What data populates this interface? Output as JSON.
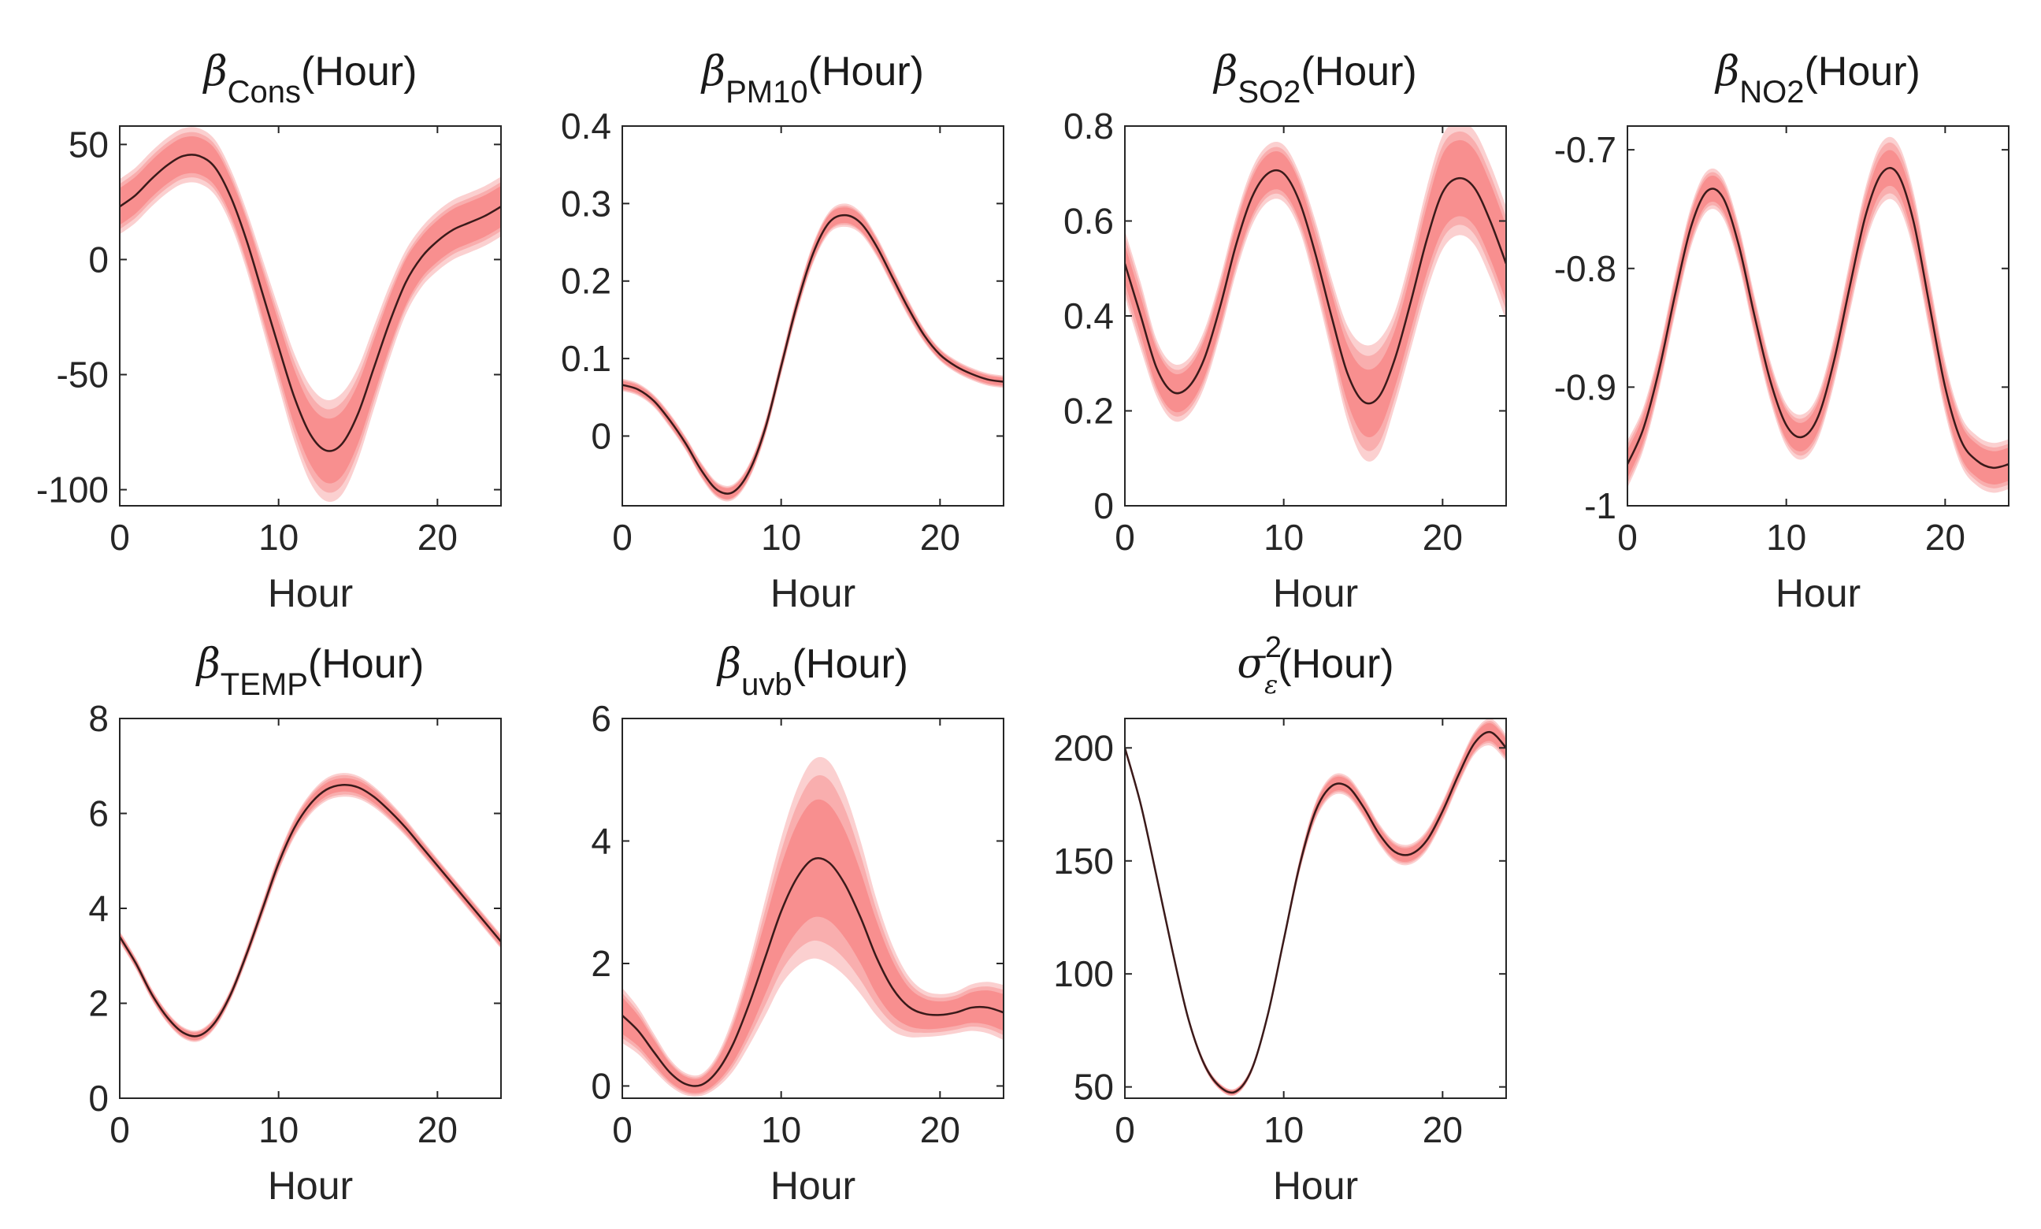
{
  "figure": {
    "description_layout": "3 top panels + 1 on row 1 (4 total), 3 on row 2"
  },
  "chart_data": [
    {
      "type": "line",
      "title": {
        "symbol": "β",
        "subscript": "Cons",
        "superscript": "",
        "suffix": "(Hour)"
      },
      "xlabel": "Hour",
      "xlim": [
        0,
        24
      ],
      "ylim": [
        -107,
        58
      ],
      "xticks": [
        0,
        10,
        20
      ],
      "xtick_labels": [
        "0",
        "10",
        "20"
      ],
      "yticks": [
        50,
        0,
        -50,
        -100
      ],
      "ytick_labels": [
        "50",
        "0",
        "-50",
        "-100"
      ],
      "x": [
        0,
        1,
        2,
        3,
        4,
        5,
        6,
        7,
        8,
        9,
        10,
        11,
        12,
        13,
        14,
        15,
        16,
        17,
        18,
        19,
        20,
        21,
        22,
        23,
        24
      ],
      "mean": [
        23,
        28,
        35,
        41,
        45,
        45,
        40,
        27,
        8,
        -15,
        -38,
        -60,
        -76,
        -83,
        -80,
        -67,
        -47,
        -27,
        -10,
        1,
        8,
        13,
        16,
        19,
        23
      ],
      "band_inner": [
        8,
        8,
        8,
        8,
        8,
        8,
        8,
        8,
        9,
        10,
        11,
        12,
        13,
        14,
        14,
        13,
        12,
        11,
        10,
        9,
        9,
        9,
        9,
        9,
        9
      ],
      "band_outer": [
        12,
        12,
        12,
        12,
        12,
        12,
        12,
        12,
        13,
        15,
        17,
        19,
        21,
        22,
        22,
        20,
        18,
        16,
        14,
        13,
        13,
        13,
        13,
        13,
        13
      ]
    },
    {
      "type": "line",
      "title": {
        "symbol": "β",
        "subscript": "PM10",
        "superscript": "",
        "suffix": "(Hour)"
      },
      "xlabel": "Hour",
      "xlim": [
        0,
        24
      ],
      "ylim": [
        -0.09,
        0.4
      ],
      "xticks": [
        0,
        10,
        20
      ],
      "xtick_labels": [
        "0",
        "10",
        "20"
      ],
      "yticks": [
        0.4,
        0.3,
        0.2,
        0.1,
        0
      ],
      "ytick_labels": [
        "0.4",
        "0.3",
        "0.2",
        "0.1",
        "0"
      ],
      "x": [
        0,
        1,
        2,
        3,
        4,
        5,
        6,
        7,
        8,
        9,
        10,
        11,
        12,
        13,
        14,
        15,
        16,
        17,
        18,
        19,
        20,
        21,
        22,
        23,
        24
      ],
      "mean": [
        0.066,
        0.06,
        0.045,
        0.02,
        -0.01,
        -0.045,
        -0.07,
        -0.072,
        -0.045,
        0.01,
        0.09,
        0.17,
        0.235,
        0.275,
        0.285,
        0.275,
        0.245,
        0.205,
        0.165,
        0.13,
        0.105,
        0.09,
        0.08,
        0.073,
        0.07
      ],
      "band_inner": [
        0.005,
        0.005,
        0.005,
        0.006,
        0.006,
        0.007,
        0.007,
        0.007,
        0.007,
        0.007,
        0.007,
        0.008,
        0.009,
        0.01,
        0.01,
        0.01,
        0.009,
        0.008,
        0.007,
        0.006,
        0.006,
        0.005,
        0.005,
        0.005,
        0.005
      ],
      "band_outer": [
        0.008,
        0.008,
        0.008,
        0.009,
        0.009,
        0.01,
        0.01,
        0.01,
        0.01,
        0.01,
        0.011,
        0.012,
        0.013,
        0.014,
        0.015,
        0.014,
        0.013,
        0.012,
        0.011,
        0.009,
        0.008,
        0.008,
        0.008,
        0.008,
        0.008
      ]
    },
    {
      "type": "line",
      "title": {
        "symbol": "β",
        "subscript": "SO2",
        "superscript": "",
        "suffix": "(Hour)"
      },
      "xlabel": "Hour",
      "xlim": [
        0,
        24
      ],
      "ylim": [
        0,
        0.8
      ],
      "xticks": [
        0,
        10,
        20
      ],
      "xtick_labels": [
        "0",
        "10",
        "20"
      ],
      "yticks": [
        0.8,
        0.6,
        0.4,
        0.2,
        0
      ],
      "ytick_labels": [
        "0.8",
        "0.6",
        "0.4",
        "0.2",
        "0"
      ],
      "x": [
        0,
        1,
        2,
        3,
        4,
        5,
        6,
        7,
        8,
        9,
        10,
        11,
        12,
        13,
        14,
        15,
        16,
        17,
        18,
        19,
        20,
        21,
        22,
        23,
        24
      ],
      "mean": [
        0.51,
        0.4,
        0.29,
        0.24,
        0.25,
        0.31,
        0.42,
        0.55,
        0.65,
        0.7,
        0.7,
        0.64,
        0.53,
        0.4,
        0.28,
        0.22,
        0.23,
        0.31,
        0.43,
        0.56,
        0.66,
        0.69,
        0.67,
        0.6,
        0.51
      ],
      "band_inner": [
        0.04,
        0.04,
        0.04,
        0.04,
        0.04,
        0.04,
        0.04,
        0.04,
        0.04,
        0.04,
        0.04,
        0.04,
        0.04,
        0.05,
        0.06,
        0.07,
        0.07,
        0.06,
        0.06,
        0.07,
        0.08,
        0.08,
        0.08,
        0.08,
        0.08
      ],
      "band_outer": [
        0.07,
        0.07,
        0.06,
        0.06,
        0.06,
        0.06,
        0.06,
        0.06,
        0.06,
        0.06,
        0.06,
        0.06,
        0.07,
        0.08,
        0.1,
        0.12,
        0.12,
        0.1,
        0.1,
        0.11,
        0.12,
        0.12,
        0.12,
        0.12,
        0.12
      ]
    },
    {
      "type": "line",
      "title": {
        "symbol": "β",
        "subscript": "NO2",
        "superscript": "",
        "suffix": "(Hour)"
      },
      "xlabel": "Hour",
      "xlim": [
        0,
        24
      ],
      "ylim": [
        -1.0,
        -0.68
      ],
      "xticks": [
        0,
        10,
        20
      ],
      "xtick_labels": [
        "0",
        "10",
        "20"
      ],
      "yticks": [
        -0.7,
        -0.8,
        -0.9,
        -1
      ],
      "ytick_labels": [
        "-0.7",
        "-0.8",
        "-0.9",
        "-1"
      ],
      "x": [
        0,
        1,
        2,
        3,
        4,
        5,
        6,
        7,
        8,
        9,
        10,
        11,
        12,
        13,
        14,
        15,
        16,
        17,
        18,
        19,
        20,
        21,
        22,
        23,
        24
      ],
      "mean": [
        -0.965,
        -0.935,
        -0.885,
        -0.822,
        -0.765,
        -0.735,
        -0.74,
        -0.78,
        -0.84,
        -0.895,
        -0.932,
        -0.942,
        -0.925,
        -0.878,
        -0.815,
        -0.755,
        -0.72,
        -0.72,
        -0.76,
        -0.83,
        -0.9,
        -0.945,
        -0.962,
        -0.968,
        -0.965
      ],
      "band_inner": [
        0.012,
        0.011,
        0.011,
        0.011,
        0.011,
        0.011,
        0.011,
        0.011,
        0.011,
        0.011,
        0.012,
        0.012,
        0.012,
        0.012,
        0.013,
        0.014,
        0.015,
        0.015,
        0.015,
        0.014,
        0.014,
        0.014,
        0.014,
        0.014,
        0.014
      ],
      "band_outer": [
        0.02,
        0.018,
        0.017,
        0.017,
        0.017,
        0.017,
        0.017,
        0.017,
        0.017,
        0.017,
        0.018,
        0.019,
        0.019,
        0.02,
        0.022,
        0.024,
        0.026,
        0.026,
        0.025,
        0.023,
        0.022,
        0.021,
        0.021,
        0.021,
        0.021
      ]
    },
    {
      "type": "line",
      "title": {
        "symbol": "β",
        "subscript": "TEMP",
        "superscript": "",
        "suffix": "(Hour)"
      },
      "xlabel": "Hour",
      "xlim": [
        0,
        24
      ],
      "ylim": [
        0,
        8
      ],
      "xticks": [
        0,
        10,
        20
      ],
      "xtick_labels": [
        "0",
        "10",
        "20"
      ],
      "yticks": [
        8,
        6,
        4,
        2,
        0
      ],
      "ytick_labels": [
        "8",
        "6",
        "4",
        "2",
        "0"
      ],
      "x": [
        0,
        1,
        2,
        3,
        4,
        5,
        6,
        7,
        8,
        9,
        10,
        11,
        12,
        13,
        14,
        15,
        16,
        17,
        18,
        19,
        20,
        21,
        22,
        23,
        24
      ],
      "mean": [
        3.4,
        2.85,
        2.2,
        1.7,
        1.38,
        1.32,
        1.6,
        2.2,
        3.05,
        4.0,
        4.95,
        5.7,
        6.2,
        6.5,
        6.6,
        6.55,
        6.35,
        6.05,
        5.7,
        5.3,
        4.9,
        4.5,
        4.1,
        3.7,
        3.3
      ],
      "band_inner": [
        0.08,
        0.08,
        0.08,
        0.08,
        0.08,
        0.08,
        0.08,
        0.08,
        0.09,
        0.1,
        0.11,
        0.12,
        0.13,
        0.14,
        0.14,
        0.14,
        0.13,
        0.12,
        0.11,
        0.1,
        0.1,
        0.1,
        0.1,
        0.1,
        0.1
      ],
      "band_outer": [
        0.12,
        0.12,
        0.12,
        0.12,
        0.12,
        0.12,
        0.12,
        0.12,
        0.14,
        0.16,
        0.18,
        0.2,
        0.22,
        0.24,
        0.25,
        0.24,
        0.22,
        0.2,
        0.18,
        0.16,
        0.15,
        0.15,
        0.15,
        0.15,
        0.15
      ]
    },
    {
      "type": "line",
      "title": {
        "symbol": "β",
        "subscript": "uvb",
        "superscript": "",
        "suffix": "(Hour)"
      },
      "xlabel": "Hour",
      "xlim": [
        0,
        24
      ],
      "ylim": [
        -0.2,
        6
      ],
      "xticks": [
        0,
        10,
        20
      ],
      "xtick_labels": [
        "0",
        "10",
        "20"
      ],
      "yticks": [
        6,
        4,
        2,
        0
      ],
      "ytick_labels": [
        "6",
        "4",
        "2",
        "0"
      ],
      "x": [
        0,
        1,
        2,
        3,
        4,
        5,
        6,
        7,
        8,
        9,
        10,
        11,
        12,
        13,
        14,
        15,
        16,
        17,
        18,
        19,
        20,
        21,
        22,
        23,
        24
      ],
      "mean": [
        1.15,
        0.9,
        0.55,
        0.22,
        0.03,
        0.02,
        0.25,
        0.7,
        1.35,
        2.1,
        2.85,
        3.4,
        3.7,
        3.65,
        3.3,
        2.75,
        2.1,
        1.6,
        1.3,
        1.18,
        1.16,
        1.2,
        1.28,
        1.28,
        1.2
      ],
      "band_inner": [
        0.3,
        0.25,
        0.2,
        0.15,
        0.12,
        0.12,
        0.18,
        0.3,
        0.45,
        0.6,
        0.75,
        0.88,
        0.95,
        0.95,
        0.88,
        0.75,
        0.6,
        0.45,
        0.32,
        0.25,
        0.22,
        0.22,
        0.25,
        0.28,
        0.3
      ],
      "band_outer": [
        0.45,
        0.38,
        0.3,
        0.22,
        0.18,
        0.18,
        0.27,
        0.45,
        0.68,
        0.95,
        1.2,
        1.45,
        1.62,
        1.65,
        1.5,
        1.25,
        0.95,
        0.7,
        0.5,
        0.38,
        0.34,
        0.34,
        0.38,
        0.42,
        0.45
      ]
    },
    {
      "type": "line",
      "title": {
        "symbol": "σ",
        "subscript": "ε",
        "superscript": "2",
        "suffix": "(Hour)"
      },
      "xlabel": "Hour",
      "xlim": [
        0,
        24
      ],
      "ylim": [
        45,
        213
      ],
      "xticks": [
        0,
        10,
        20
      ],
      "xtick_labels": [
        "0",
        "10",
        "20"
      ],
      "yticks": [
        200,
        150,
        100,
        50
      ],
      "ytick_labels": [
        "200",
        "150",
        "100",
        "50"
      ],
      "x": [
        0,
        1,
        2,
        3,
        4,
        5,
        6,
        7,
        8,
        9,
        10,
        11,
        12,
        13,
        14,
        15,
        16,
        17,
        18,
        19,
        20,
        21,
        22,
        23,
        24
      ],
      "mean": [
        200,
        175,
        143,
        110,
        80,
        60,
        50,
        48,
        58,
        82,
        115,
        148,
        172,
        183,
        183,
        174,
        162,
        154,
        153,
        159,
        172,
        188,
        202,
        207,
        200
      ],
      "band_inner": [
        1,
        1,
        1,
        1,
        1,
        1,
        1,
        1,
        1,
        1,
        1.5,
        2,
        2.5,
        3,
        3,
        3,
        3,
        3,
        3,
        3,
        3,
        3,
        3.5,
        4,
        4
      ],
      "band_outer": [
        1.5,
        1.5,
        1.5,
        1.5,
        1.5,
        1.5,
        1.5,
        1.5,
        1.5,
        1.5,
        2,
        3,
        4,
        4.5,
        4.5,
        4.5,
        4.5,
        4.5,
        4.5,
        4.5,
        4.5,
        4.5,
        5,
        6,
        6
      ]
    }
  ]
}
